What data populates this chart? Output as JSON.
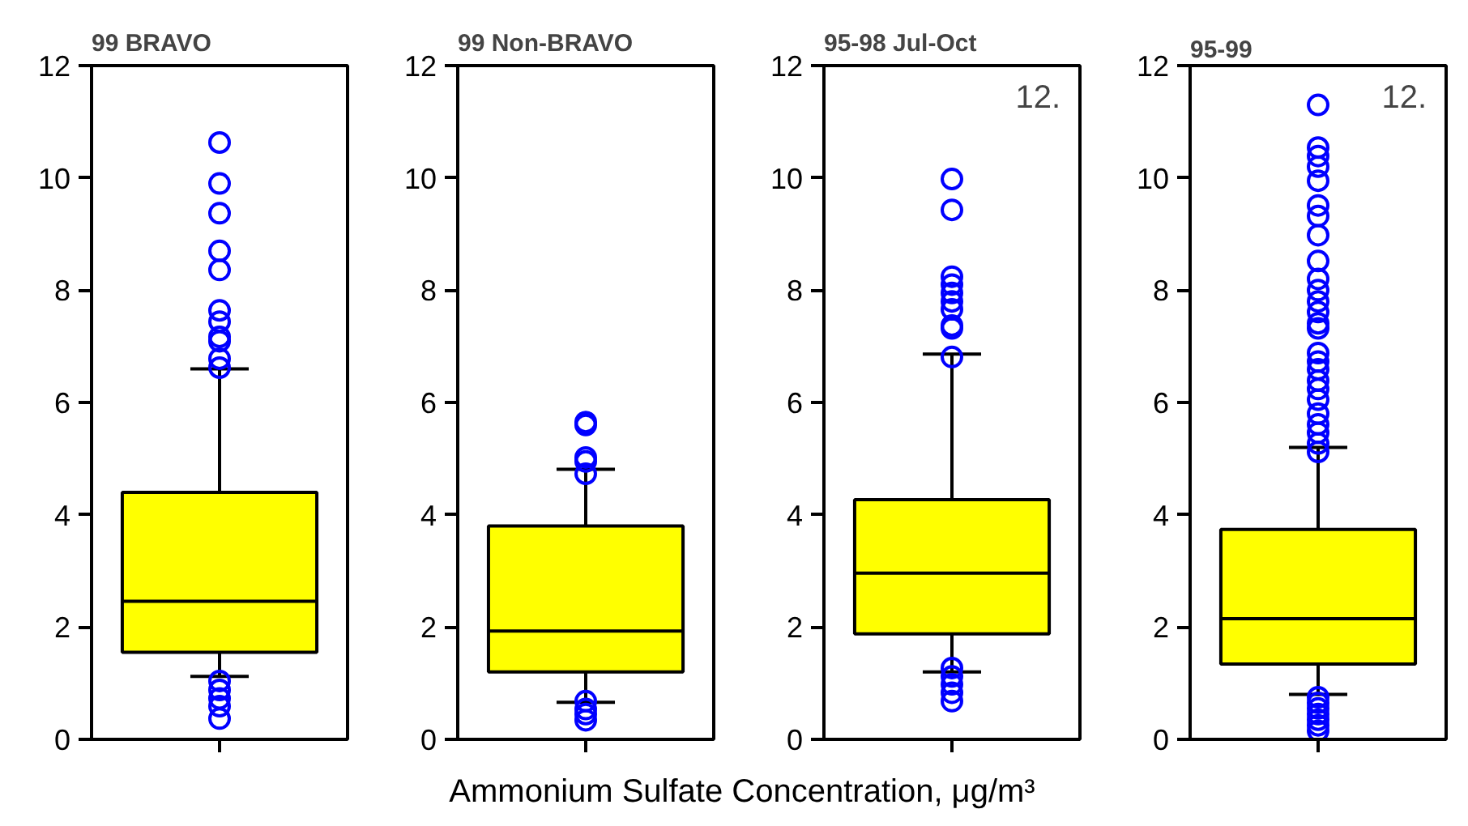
{
  "chart_data": [
    {
      "type": "box",
      "title": "99 BRAVO",
      "xlabel": "Ammonium Sulfate Concentration, μg/m³",
      "categories": [
        null
      ],
      "ylim": [
        0,
        12
      ],
      "yticks": [
        0,
        2,
        4,
        6,
        8,
        10,
        12
      ],
      "grid": false,
      "series": [
        {
          "color": "#ffff00",
          "boxes": [
            {
              "low": 1.12,
              "q1": 1.55,
              "median": 2.46,
              "q3": 4.4,
              "high": 6.6,
              "outliers": [
                10.63,
                9.9,
                9.37,
                8.7,
                8.36,
                7.64,
                7.44,
                7.17,
                7.09,
                6.78,
                6.62,
                1.04,
                0.88,
                0.73,
                0.59,
                0.37
              ]
            }
          ]
        }
      ]
    },
    {
      "type": "box",
      "title": "99 Non-BRAVO",
      "categories": [
        null
      ],
      "ylim": [
        0,
        12
      ],
      "yticks": [
        0,
        2,
        4,
        6,
        8,
        10,
        12
      ],
      "grid": false,
      "series": [
        {
          "color": "#ffff00",
          "boxes": [
            {
              "low": 0.66,
              "q1": 1.2,
              "median": 1.93,
              "q3": 3.8,
              "high": 4.81,
              "outliers": [
                5.65,
                5.6,
                5.02,
                4.95,
                4.73,
                0.68,
                0.54,
                0.45,
                0.34
              ]
            }
          ]
        }
      ]
    },
    {
      "type": "box",
      "title": "95-98 Jul-Oct",
      "annotations": [
        "12."
      ],
      "categories": [
        null
      ],
      "ylim": [
        0,
        12
      ],
      "yticks": [
        0,
        2,
        4,
        6,
        8,
        10,
        12
      ],
      "grid": false,
      "series": [
        {
          "color": "#ffff00",
          "boxes": [
            {
              "low": 1.2,
              "q1": 1.88,
              "median": 2.96,
              "q3": 4.27,
              "high": 6.86,
              "outliers": [
                9.98,
                9.43,
                8.24,
                8.1,
                7.95,
                7.8,
                7.66,
                7.37,
                7.32,
                6.81,
                1.27,
                1.12,
                0.98,
                0.83,
                0.68
              ]
            }
          ]
        }
      ]
    },
    {
      "type": "box",
      "title": "95-99",
      "annotations": [
        "12."
      ],
      "categories": [
        null
      ],
      "ylim": [
        0,
        12
      ],
      "yticks": [
        0,
        2,
        4,
        6,
        8,
        10,
        12
      ],
      "grid": false,
      "series": [
        {
          "color": "#ffff00",
          "boxes": [
            {
              "low": 0.8,
              "q1": 1.34,
              "median": 2.15,
              "q3": 3.74,
              "high": 5.2,
              "outliers": [
                11.3,
                10.54,
                10.39,
                10.2,
                9.95,
                9.51,
                9.32,
                8.98,
                8.52,
                8.2,
                8.0,
                7.8,
                7.61,
                7.41,
                7.32,
                6.88,
                6.73,
                6.59,
                6.39,
                6.24,
                6.05,
                5.8,
                5.61,
                5.46,
                5.27,
                5.12,
                0.75,
                0.65,
                0.55,
                0.45,
                0.35,
                0.25,
                0.15
              ]
            }
          ]
        }
      ]
    }
  ]
}
